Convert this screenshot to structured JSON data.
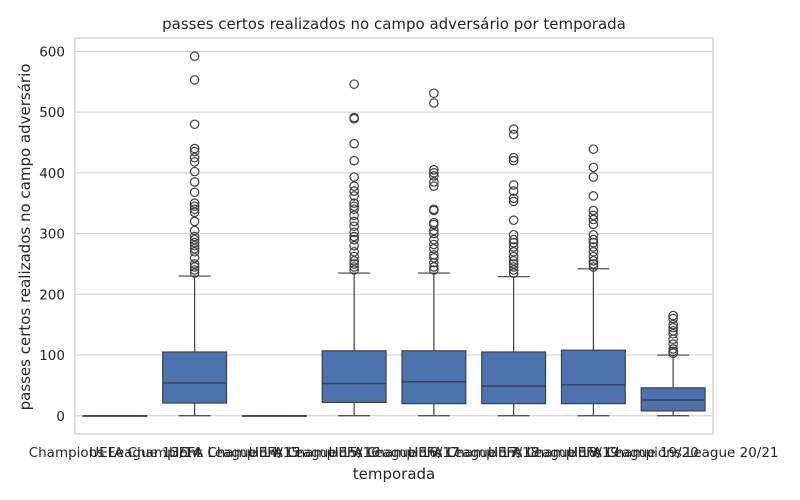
{
  "chart_data": {
    "type": "box",
    "title": "passes certos realizados no campo adversário por temporada",
    "xlabel": "temporada",
    "ylabel": "passes certos realizados no campo adversário",
    "ylim": [
      -30,
      622
    ],
    "yticks": [
      0,
      100,
      200,
      300,
      400,
      500,
      600
    ],
    "grid": true,
    "box_color": "#4c72b0",
    "categories": [
      "Champions League 13/14",
      "UEFA Champions League 14/15",
      "UEFA Champions League 15/16",
      "UEFA Champions League 16/17",
      "UEFA Champions League 17/18",
      "UEFA Champions League 18/19",
      "UEFA Champions League 19/20",
      "UEFA Champions League 20/21"
    ],
    "series": [
      {
        "min": 0,
        "q1": 0,
        "median": 0,
        "q3": 0,
        "max": 0,
        "outliers": []
      },
      {
        "min": 0,
        "q1": 21,
        "median": 54,
        "q3": 105,
        "max": 230,
        "outliers": [
          235,
          240,
          245,
          250,
          260,
          270,
          275,
          280,
          285,
          290,
          295,
          305,
          320,
          335,
          340,
          345,
          350,
          368,
          385,
          402,
          418,
          425,
          435,
          440,
          480,
          553,
          592
        ]
      },
      {
        "min": 0,
        "q1": 0,
        "median": 0,
        "q3": 0,
        "max": 0,
        "outliers": []
      },
      {
        "min": 0,
        "q1": 22,
        "median": 53,
        "q3": 107,
        "max": 235,
        "outliers": [
          240,
          245,
          250,
          255,
          262,
          270,
          280,
          290,
          295,
          302,
          312,
          320,
          330,
          340,
          345,
          350,
          362,
          370,
          378,
          393,
          420,
          448,
          489,
          491,
          546
        ]
      },
      {
        "min": 0,
        "q1": 20,
        "median": 56,
        "q3": 107,
        "max": 235,
        "outliers": [
          240,
          245,
          252,
          260,
          265,
          275,
          282,
          290,
          300,
          305,
          315,
          318,
          338,
          340,
          378,
          385,
          395,
          400,
          405,
          515,
          531
        ]
      },
      {
        "min": 0,
        "q1": 20,
        "median": 49,
        "q3": 105,
        "max": 229,
        "outliers": [
          235,
          240,
          245,
          250,
          255,
          262,
          270,
          278,
          285,
          290,
          298,
          322,
          353,
          358,
          370,
          380,
          420,
          425,
          463,
          472
        ]
      },
      {
        "min": 0,
        "q1": 20,
        "median": 51,
        "q3": 108,
        "max": 242,
        "outliers": [
          245,
          250,
          255,
          262,
          270,
          278,
          285,
          290,
          298,
          315,
          323,
          330,
          338,
          362,
          393,
          409,
          439
        ]
      },
      {
        "min": 0,
        "q1": 8,
        "median": 26,
        "q3": 46,
        "max": 100,
        "outliers": [
          103,
          106,
          110,
          118,
          126,
          135,
          140,
          145,
          150,
          160,
          165
        ]
      }
    ]
  }
}
